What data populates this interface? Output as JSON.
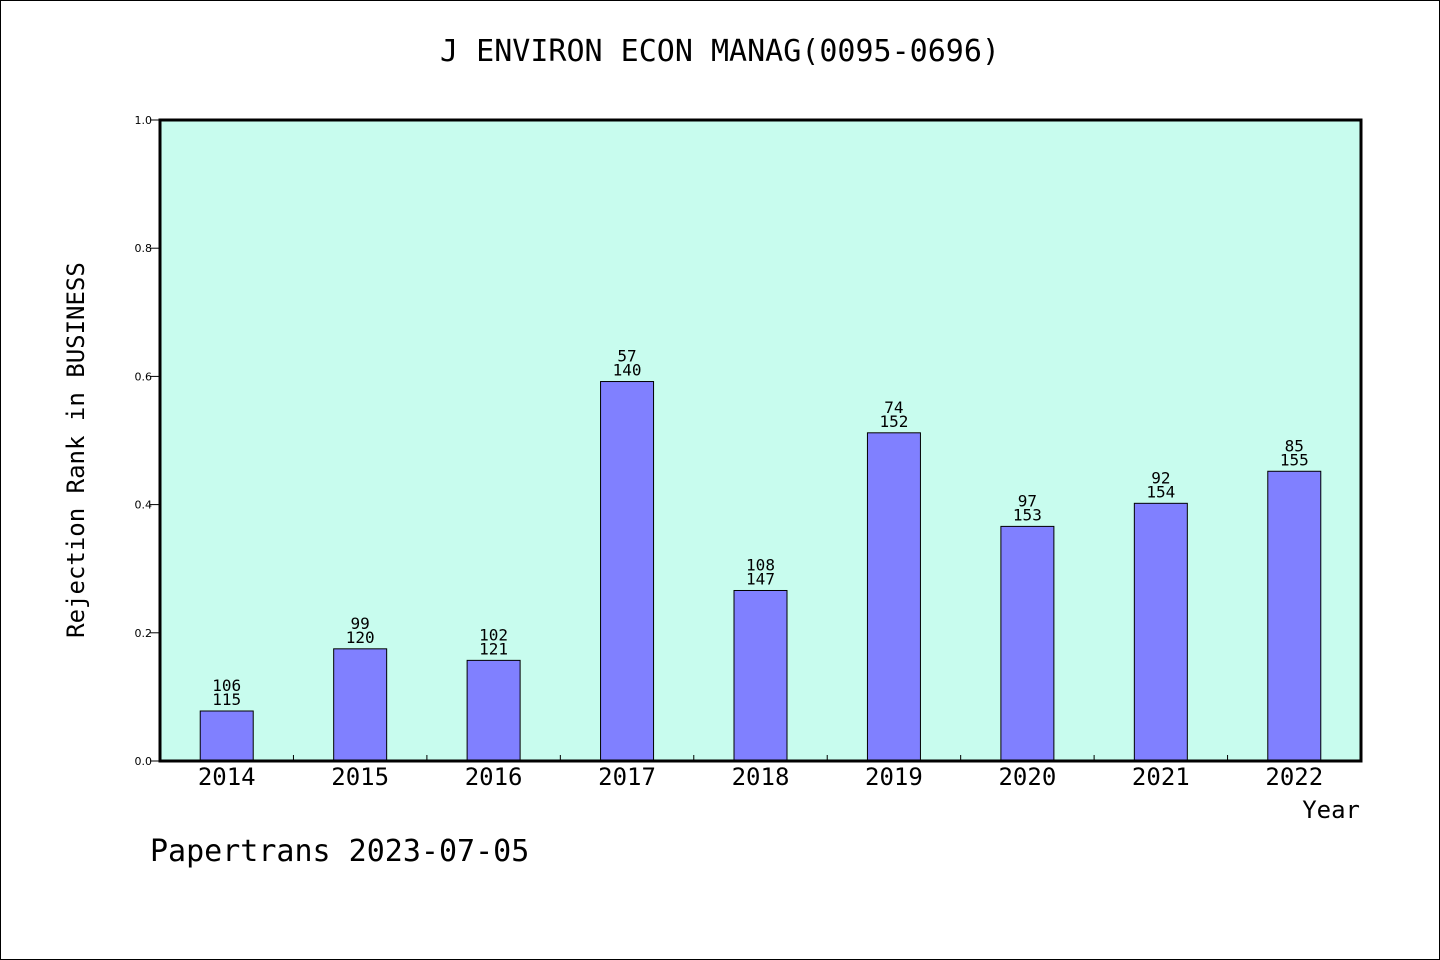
{
  "footer": "Papertrans 2023-07-05",
  "colors": {
    "plot_background": "#c8fcee",
    "bar_fill": "#8080ff",
    "bar_stroke": "#000000"
  },
  "chart_data": {
    "type": "bar",
    "title": "J ENVIRON ECON MANAG(0095-0696)",
    "xlabel": "Year",
    "ylabel": "Rejection Rank in BUSINESS",
    "ylim": [
      0,
      1.0
    ],
    "yticks": [
      "0.0",
      "0.2",
      "0.4",
      "0.6",
      "0.8",
      "1.0"
    ],
    "categories": [
      "2014",
      "2015",
      "2016",
      "2017",
      "2018",
      "2019",
      "2020",
      "2021",
      "2022"
    ],
    "values": [
      0.078,
      0.175,
      0.157,
      0.592,
      0.266,
      0.512,
      0.366,
      0.402,
      0.452
    ],
    "rank_labels": [
      "106",
      "99",
      "102",
      "57",
      "108",
      "74",
      "97",
      "92",
      "85"
    ],
    "total_labels": [
      "115",
      "120",
      "121",
      "140",
      "147",
      "152",
      "153",
      "154",
      "155"
    ],
    "grid": false,
    "legend": "none"
  }
}
